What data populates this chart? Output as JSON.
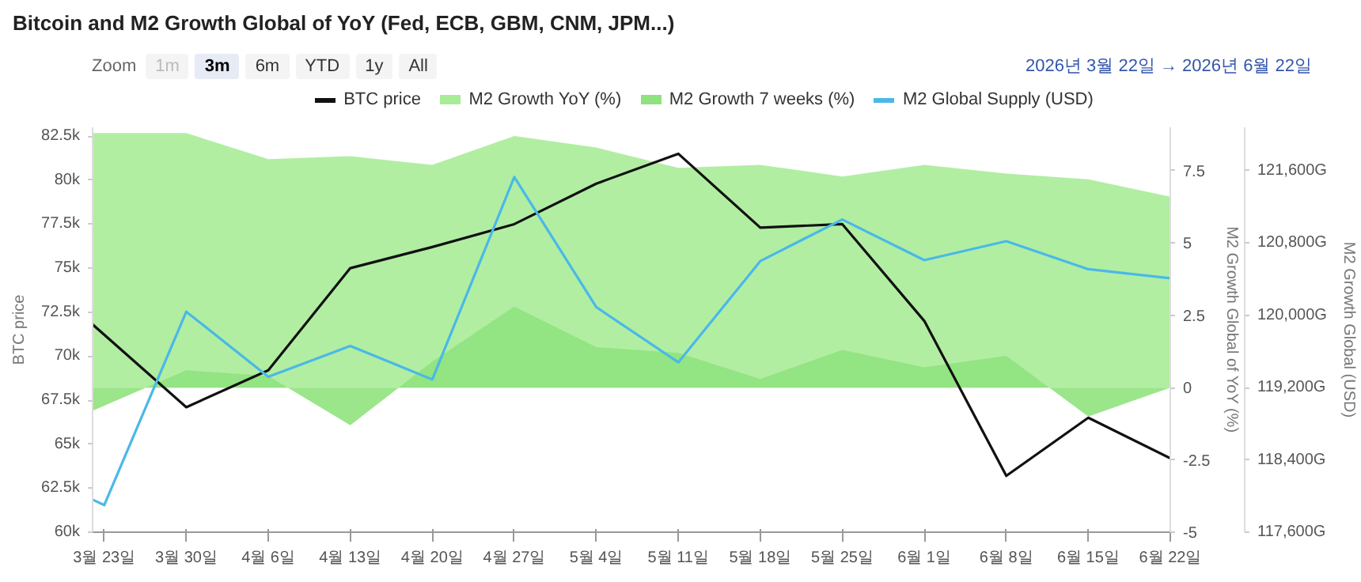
{
  "chart_data": {
    "type": "line",
    "title": "Bitcoin and M2 Growth Global of YoY (Fed, ECB, GBM, CNM, JPM...)",
    "annotations": [
      "Zoom",
      "1m",
      "3m",
      "6m",
      "YTD",
      "1y",
      "All",
      "2026년 3월 22일  →  2026년 6월 22일"
    ],
    "ylabel": "BTC price",
    "y2label": "M2 Growth Global of YoY (%)",
    "y3label": "M2 Growth Global (USD)",
    "xlim": [
      "2026-03-22",
      "2026-06-22"
    ],
    "xticks": [
      {
        "value": "2026-03-23",
        "label": "3월 23일"
      },
      {
        "value": "2026-03-30",
        "label": "3월 30일"
      },
      {
        "value": "2026-04-06",
        "label": "4월 6일"
      },
      {
        "value": "2026-04-13",
        "label": "4월 13일"
      },
      {
        "value": "2026-04-20",
        "label": "4월 20일"
      },
      {
        "value": "2026-04-27",
        "label": "4월 27일"
      },
      {
        "value": "2026-05-04",
        "label": "5월 4일"
      },
      {
        "value": "2026-05-11",
        "label": "5월 11일"
      },
      {
        "value": "2026-05-18",
        "label": "5월 18일"
      },
      {
        "value": "2026-05-25",
        "label": "5월 25일"
      },
      {
        "value": "2026-06-01",
        "label": "6월 1일"
      },
      {
        "value": "2026-06-08",
        "label": "6월 8일"
      },
      {
        "value": "2026-06-15",
        "label": "6월 15일"
      },
      {
        "value": "2026-06-22",
        "label": "6월 22일"
      }
    ],
    "ylim": [
      60000,
      83000
    ],
    "yticks": [
      {
        "value": 60000,
        "label": "60k"
      },
      {
        "value": 62500,
        "label": "62.5k"
      },
      {
        "value": 65000,
        "label": "65k"
      },
      {
        "value": 67500,
        "label": "67.5k"
      },
      {
        "value": 70000,
        "label": "70k"
      },
      {
        "value": 72500,
        "label": "72.5k"
      },
      {
        "value": 75000,
        "label": "75k"
      },
      {
        "value": 77500,
        "label": "77.5k"
      },
      {
        "value": 80000,
        "label": "80k"
      },
      {
        "value": 82500,
        "label": "82.5k"
      }
    ],
    "y2lim": [
      -5,
      9
    ],
    "y2ticks": [
      -5,
      -2.5,
      0,
      2.5,
      5,
      7.5
    ],
    "y3lim": [
      117600,
      122080
    ],
    "y3ticks": [
      {
        "value": 117600,
        "label": "117,600G"
      },
      {
        "value": 118400,
        "label": "118,400G"
      },
      {
        "value": 119200,
        "label": "119,200G"
      },
      {
        "value": 120000,
        "label": "120,000G"
      },
      {
        "value": 120800,
        "label": "120,800G"
      },
      {
        "value": 121600,
        "label": "121,600G"
      }
    ],
    "x": [
      "2026-03-22",
      "2026-03-30",
      "2026-04-06",
      "2026-04-13",
      "2026-04-20",
      "2026-04-27",
      "2026-05-04",
      "2026-05-11",
      "2026-05-18",
      "2026-05-25",
      "2026-06-01",
      "2026-06-08",
      "2026-06-15",
      "2026-06-22"
    ],
    "grid": false,
    "legend": "top",
    "marker": "none",
    "line_style": "solid",
    "series": [
      {
        "name": "M2 Growth YoY (%)",
        "type": "area",
        "axis": "y2",
        "color": "#a8ec98",
        "values": [
          8.8,
          8.8,
          7.9,
          8.0,
          7.7,
          8.7,
          8.3,
          7.6,
          7.7,
          7.3,
          7.7,
          7.4,
          7.2,
          6.6
        ]
      },
      {
        "name": "M2 Growth 7 weeks (%)",
        "type": "area",
        "axis": "y2",
        "color": "#90e27e",
        "values": [
          -0.8,
          0.6,
          0.4,
          -1.3,
          0.9,
          2.8,
          1.4,
          1.2,
          0.3,
          1.3,
          0.7,
          1.1,
          -1.0,
          0
        ]
      },
      {
        "name": "BTC price",
        "color": "#111111",
        "values": [
          71800,
          67100,
          69200,
          75000,
          76200,
          77500,
          79800,
          81500,
          77300,
          77500,
          72000,
          63200,
          66500,
          64200
        ]
      },
      {
        "name": "M2 Global Supply (USD)",
        "axis": "y3",
        "color": "#4ab8e8",
        "x": [
          "2026-03-22",
          "2026-03-23",
          "2026-03-30",
          "2026-04-06",
          "2026-04-13",
          "2026-04-20",
          "2026-04-27",
          "2026-05-04",
          "2026-05-11",
          "2026-05-18",
          "2026-05-25",
          "2026-06-01",
          "2026-06-08",
          "2026-06-15",
          "2026-06-22"
        ],
        "values": [
          117960,
          117900,
          120040,
          119320,
          119660,
          119290,
          121530,
          120090,
          119480,
          120600,
          121060,
          120610,
          120820,
          120510,
          120410
        ]
      }
    ]
  }
}
